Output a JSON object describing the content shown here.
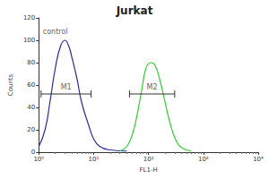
{
  "chart_data": {
    "type": "line",
    "title": "Jurkat",
    "x_label": "FL1-H",
    "y_label": "Counts",
    "log": "x",
    "grid": false,
    "xlim": [
      1,
      10000
    ],
    "xticks": [
      {
        "value": 1,
        "label": "10⁰"
      },
      {
        "value": 10,
        "label": "10¹"
      },
      {
        "value": 100,
        "label": "10²"
      },
      {
        "value": 1000,
        "label": "10³"
      },
      {
        "value": 10000,
        "label": "10⁴"
      }
    ],
    "ylim": [
      0,
      120
    ],
    "yticks": [
      0,
      20,
      40,
      60,
      80,
      100,
      120
    ],
    "series": [
      {
        "name": "control",
        "color": "#2b2b9c",
        "x": [
          1,
          1.3,
          1.6,
          2,
          2.5,
          3,
          3.5,
          4,
          5,
          6,
          8,
          10,
          13,
          20,
          40
        ],
        "values": [
          5,
          20,
          45,
          75,
          95,
          100,
          95,
          85,
          65,
          45,
          25,
          12,
          5,
          2,
          1
        ]
      },
      {
        "color": "#33cc33",
        "x": [
          30,
          40,
          50,
          60,
          75,
          90,
          110,
          130,
          160,
          200,
          250,
          320,
          400,
          600
        ],
        "values": [
          1,
          5,
          15,
          30,
          55,
          75,
          80,
          78,
          65,
          45,
          25,
          10,
          4,
          1
        ]
      }
    ],
    "annotations": [
      {
        "text": "control",
        "x": 2,
        "y": 108
      },
      {
        "text": "M1",
        "x": [
          1.1,
          9
        ],
        "y": 52
      },
      {
        "text": "M2",
        "x": [
          45,
          300
        ],
        "y": 52
      }
    ]
  }
}
